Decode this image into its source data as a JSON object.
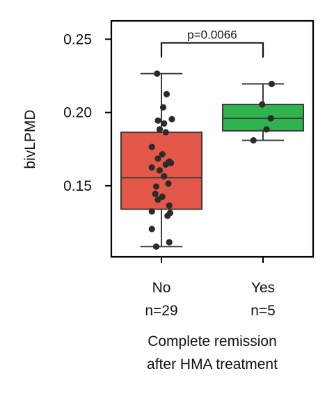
{
  "chart_data": {
    "type": "box",
    "ylabel": "bivLPMD",
    "xlabel_lines": [
      "Complete remission",
      "after HMA treatment"
    ],
    "ylim": [
      0.1015,
      0.2625
    ],
    "yticks": [
      {
        "value": 0.15,
        "label": "0.15"
      },
      {
        "value": 0.2,
        "label": "0.20"
      },
      {
        "value": 0.25,
        "label": "0.25"
      }
    ],
    "groups": [
      {
        "name": "No",
        "n_label": "n=29",
        "color": "#e4584a",
        "box": {
          "q1": 0.134,
          "median": 0.1555,
          "q3": 0.1865,
          "whisker_low": 0.1085,
          "whisker_high": 0.2265
        },
        "points": [
          [
            -0.05,
            0.2265
          ],
          [
            0.06,
            0.2125
          ],
          [
            0.02,
            0.2035
          ],
          [
            -0.04,
            0.1945
          ],
          [
            0.12,
            0.1955
          ],
          [
            0.03,
            0.1925
          ],
          [
            -0.02,
            0.1885
          ],
          [
            0.05,
            0.1865
          ],
          [
            -0.11,
            0.1765
          ],
          [
            0.01,
            0.1715
          ],
          [
            -0.04,
            0.1685
          ],
          [
            0.09,
            0.1665
          ],
          [
            0.05,
            0.1645
          ],
          [
            0.11,
            0.1655
          ],
          [
            -0.11,
            0.1625
          ],
          [
            -0.02,
            0.1605
          ],
          [
            0.03,
            0.1565
          ],
          [
            -0.06,
            0.1495
          ],
          [
            0.08,
            0.1515
          ],
          [
            -0.07,
            0.1445
          ],
          [
            -0.04,
            0.1405
          ],
          [
            0.01,
            0.1425
          ],
          [
            0.09,
            0.1365
          ],
          [
            -0.11,
            0.1325
          ],
          [
            0.07,
            0.1295
          ],
          [
            0.1,
            0.1315
          ],
          [
            -0.11,
            0.1205
          ],
          [
            0.09,
            0.1115
          ],
          [
            -0.06,
            0.1085
          ]
        ]
      },
      {
        "name": "Yes",
        "n_label": "n=5",
        "color": "#2fb34d",
        "box": {
          "q1": 0.1875,
          "median": 0.196,
          "q3": 0.2055,
          "whisker_low": 0.181,
          "whisker_high": 0.2195
        },
        "points": [
          [
            0.1,
            0.2195
          ],
          [
            -0.01,
            0.2055
          ],
          [
            0.09,
            0.196
          ],
          [
            0.04,
            0.1885
          ],
          [
            -0.11,
            0.181
          ]
        ]
      }
    ],
    "annotation": {
      "text": "p=0.0066",
      "bracket_y": 0.2475,
      "tick_bottom": 0.2375
    }
  }
}
